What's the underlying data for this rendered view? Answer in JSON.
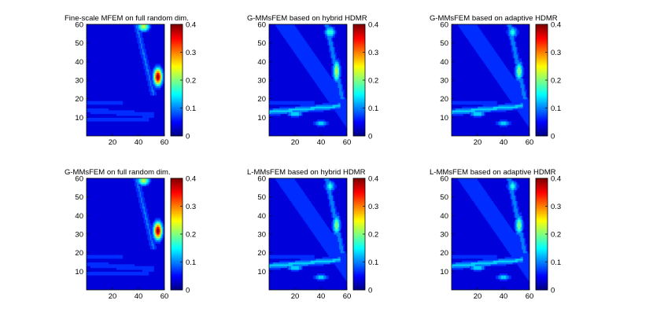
{
  "chart_data": [
    {
      "type": "heatmap",
      "title": "Fine-scale MFEM on full random dim.",
      "pattern": "full",
      "xlim": [
        0,
        60
      ],
      "ylim": [
        0,
        60
      ],
      "xticks": [
        "20",
        "40",
        "60"
      ],
      "yticks": [
        "10",
        "20",
        "30",
        "40",
        "50",
        "60"
      ],
      "colorbar": {
        "range": [
          0,
          0.4
        ],
        "ticks": [
          "0",
          "0.1",
          "0.2",
          "0.3",
          "0.4"
        ]
      },
      "peak_value": 0.4
    },
    {
      "type": "heatmap",
      "title": "G-MMsFEM based on hybrid HDMR",
      "pattern": "reduced",
      "xlim": [
        0,
        60
      ],
      "ylim": [
        0,
        60
      ],
      "xticks": [
        "20",
        "40",
        "60"
      ],
      "yticks": [
        "10",
        "20",
        "30",
        "40",
        "50",
        "60"
      ],
      "colorbar": {
        "range": [
          0,
          0.4
        ],
        "ticks": [
          "0",
          "0.1",
          "0.2",
          "0.3",
          "0.4"
        ]
      },
      "peak_value": 0.25
    },
    {
      "type": "heatmap",
      "title": "G-MMsFEM based on adaptive HDMR",
      "pattern": "reduced",
      "xlim": [
        0,
        60
      ],
      "ylim": [
        0,
        60
      ],
      "xticks": [
        "20",
        "40",
        "60"
      ],
      "yticks": [
        "10",
        "20",
        "30",
        "40",
        "50",
        "60"
      ],
      "colorbar": {
        "range": [
          0,
          0.4
        ],
        "ticks": [
          "0",
          "0.1",
          "0.2",
          "0.3",
          "0.4"
        ]
      },
      "peak_value": 0.22
    },
    {
      "type": "heatmap",
      "title": "G-MMsFEM  on full random dim.",
      "pattern": "full",
      "xlim": [
        0,
        60
      ],
      "ylim": [
        0,
        60
      ],
      "xticks": [
        "20",
        "40",
        "60"
      ],
      "yticks": [
        "10",
        "20",
        "30",
        "40",
        "50",
        "60"
      ],
      "colorbar": {
        "range": [
          0,
          0.4
        ],
        "ticks": [
          "0",
          "0.1",
          "0.2",
          "0.3",
          "0.4"
        ]
      },
      "peak_value": 0.4
    },
    {
      "type": "heatmap",
      "title": "L-MMsFEM based on hybrid HDMR",
      "pattern": "reduced",
      "xlim": [
        0,
        60
      ],
      "ylim": [
        0,
        60
      ],
      "xticks": [
        "20",
        "40",
        "60"
      ],
      "yticks": [
        "10",
        "20",
        "30",
        "40",
        "50",
        "60"
      ],
      "colorbar": {
        "range": [
          0,
          0.4
        ],
        "ticks": [
          "0",
          "0.1",
          "0.2",
          "0.3",
          "0.4"
        ]
      },
      "peak_value": 0.22
    },
    {
      "type": "heatmap",
      "title": "L-MMsFEM based on adaptive HDMR",
      "pattern": "reduced",
      "xlim": [
        0,
        60
      ],
      "ylim": [
        0,
        60
      ],
      "xticks": [
        "20",
        "40",
        "60"
      ],
      "yticks": [
        "10",
        "20",
        "30",
        "40",
        "50",
        "60"
      ],
      "colorbar": {
        "range": [
          0,
          0.4
        ],
        "ticks": [
          "0",
          "0.1",
          "0.2",
          "0.3",
          "0.4"
        ]
      },
      "peak_value": 0.22
    }
  ]
}
